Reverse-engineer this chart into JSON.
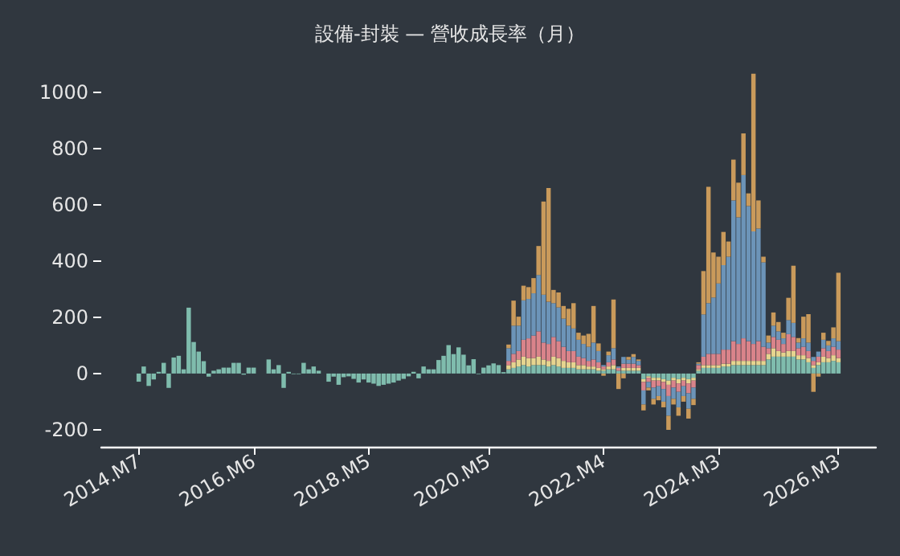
{
  "chart_data": {
    "type": "bar",
    "title": "設備-封裝 — 營收成長率（月）",
    "stacked": true,
    "categories": [
      null,
      null,
      null,
      null,
      null,
      null,
      null,
      "2014.M7",
      null,
      null,
      null,
      null,
      null,
      null,
      null,
      null,
      null,
      null,
      null,
      null,
      null,
      null,
      null,
      null,
      null,
      null,
      null,
      null,
      null,
      null,
      "2016.M6",
      null,
      null,
      null,
      null,
      null,
      null,
      null,
      null,
      null,
      null,
      null,
      null,
      null,
      null,
      null,
      null,
      null,
      null,
      null,
      null,
      null,
      null,
      "2018.M5",
      null,
      null,
      null,
      null,
      null,
      null,
      null,
      null,
      null,
      null,
      null,
      null,
      null,
      null,
      null,
      null,
      null,
      null,
      null,
      null,
      null,
      null,
      null,
      "2020.M5",
      null,
      null,
      null,
      null,
      null,
      null,
      null,
      null,
      null,
      null,
      null,
      null,
      null,
      null,
      null,
      null,
      null,
      null,
      null,
      null,
      null,
      null,
      "2022.M4",
      null,
      null,
      null,
      null,
      null,
      null,
      null,
      null,
      null,
      null,
      null,
      null,
      null,
      null,
      null,
      null,
      null,
      null,
      null,
      null,
      null,
      null,
      "2024.M3",
      null,
      null,
      null,
      null,
      null,
      null,
      null,
      null,
      null,
      null,
      null,
      null,
      null,
      null,
      null,
      null,
      null,
      null,
      null,
      null,
      null,
      null,
      null,
      "2026.M3",
      null,
      null,
      null,
      null,
      null,
      null,
      null
    ],
    "series": [
      {
        "color": "#7fbcad",
        "values": [
          null,
          null,
          null,
          null,
          null,
          null,
          null,
          -29,
          25,
          -44,
          -21,
          6,
          38,
          -51,
          57,
          63,
          15,
          234,
          112,
          78,
          44,
          -11,
          10,
          15,
          21,
          21,
          38,
          38,
          -4,
          21,
          21,
          0,
          null,
          50,
          15,
          30,
          -51,
          6,
          -2,
          -2,
          38,
          15,
          25,
          10,
          null,
          -29,
          -11,
          -40,
          -13,
          -10,
          -19,
          -32,
          -21,
          -32,
          -36,
          -44,
          -40,
          -36,
          -32,
          -25,
          -19,
          -10,
          6,
          -17,
          25,
          15,
          15,
          48,
          63,
          101,
          69,
          93,
          67,
          29,
          51,
          -2,
          21,
          29,
          36,
          30,
          5,
          15,
          20,
          25,
          30,
          25,
          30,
          30,
          30,
          25,
          30,
          25,
          20,
          20,
          20,
          15,
          15,
          15,
          15,
          10,
          10,
          15,
          15,
          10,
          10,
          10,
          10,
          10,
          -20,
          -10,
          -15,
          -15,
          -20,
          -25,
          -15,
          -20,
          -15,
          -20,
          -15,
          10,
          20,
          20,
          20,
          20,
          25,
          25,
          30,
          30,
          30,
          30,
          30,
          30,
          30,
          50,
          60,
          60,
          60,
          60,
          60,
          50,
          50,
          40,
          20,
          30,
          40,
          40,
          45,
          40,
          null,
          null,
          null,
          null,
          null,
          null,
          null
        ]
      },
      {
        "color": "#e6d48f",
        "values": [
          null,
          null,
          null,
          null,
          null,
          null,
          null,
          null,
          null,
          null,
          null,
          null,
          null,
          null,
          null,
          null,
          null,
          null,
          null,
          null,
          null,
          null,
          null,
          null,
          null,
          null,
          null,
          null,
          null,
          null,
          null,
          null,
          null,
          null,
          null,
          null,
          null,
          null,
          null,
          null,
          null,
          null,
          null,
          null,
          null,
          null,
          null,
          null,
          null,
          null,
          null,
          null,
          null,
          null,
          null,
          null,
          null,
          null,
          null,
          null,
          null,
          null,
          null,
          null,
          null,
          null,
          null,
          null,
          null,
          null,
          null,
          null,
          null,
          null,
          null,
          null,
          null,
          null,
          null,
          null,
          null,
          15,
          20,
          25,
          30,
          30,
          25,
          30,
          20,
          20,
          30,
          30,
          25,
          20,
          20,
          15,
          15,
          10,
          10,
          10,
          5,
          10,
          15,
          null,
          10,
          10,
          10,
          10,
          -10,
          -5,
          -10,
          -10,
          -10,
          -15,
          -10,
          -15,
          -10,
          -15,
          -10,
          5,
          10,
          10,
          10,
          10,
          10,
          10,
          15,
          15,
          15,
          15,
          15,
          15,
          15,
          20,
          30,
          20,
          15,
          20,
          20,
          15,
          15,
          15,
          10,
          10,
          20,
          15,
          20,
          15,
          null,
          null,
          null,
          null,
          null,
          null,
          null
        ]
      },
      {
        "color": "#d9838a",
        "values": [
          null,
          null,
          null,
          null,
          null,
          null,
          null,
          null,
          null,
          null,
          null,
          null,
          null,
          null,
          null,
          null,
          null,
          null,
          null,
          null,
          null,
          null,
          null,
          null,
          null,
          null,
          null,
          null,
          null,
          null,
          null,
          null,
          null,
          null,
          null,
          null,
          null,
          null,
          null,
          null,
          null,
          null,
          null,
          null,
          null,
          null,
          null,
          null,
          null,
          null,
          null,
          null,
          null,
          null,
          null,
          null,
          null,
          null,
          null,
          null,
          null,
          null,
          null,
          null,
          null,
          null,
          null,
          null,
          null,
          null,
          null,
          null,
          null,
          null,
          null,
          null,
          null,
          null,
          null,
          null,
          null,
          15,
          30,
          30,
          60,
          70,
          80,
          90,
          60,
          60,
          70,
          60,
          50,
          40,
          40,
          30,
          25,
          20,
          25,
          20,
          10,
          15,
          20,
          10,
          15,
          15,
          15,
          10,
          -30,
          -15,
          -25,
          -20,
          -25,
          -40,
          -25,
          -30,
          -20,
          -35,
          -25,
          15,
          30,
          40,
          40,
          40,
          50,
          50,
          70,
          60,
          80,
          70,
          60,
          70,
          50,
          20,
          40,
          40,
          30,
          60,
          50,
          25,
          30,
          25,
          15,
          20,
          30,
          25,
          30,
          30,
          null,
          null,
          null,
          null,
          null,
          null,
          null
        ]
      },
      {
        "color": "#6c94b8",
        "values": [
          null,
          null,
          null,
          null,
          null,
          null,
          null,
          null,
          null,
          null,
          null,
          null,
          null,
          null,
          null,
          null,
          null,
          null,
          null,
          null,
          null,
          null,
          null,
          null,
          null,
          null,
          null,
          null,
          null,
          null,
          null,
          null,
          null,
          null,
          null,
          null,
          null,
          null,
          null,
          null,
          null,
          null,
          null,
          null,
          null,
          null,
          null,
          null,
          null,
          null,
          null,
          null,
          null,
          null,
          null,
          null,
          null,
          null,
          null,
          null,
          null,
          null,
          null,
          null,
          null,
          null,
          null,
          null,
          null,
          null,
          null,
          null,
          null,
          null,
          null,
          null,
          null,
          null,
          null,
          null,
          null,
          45,
          100,
          90,
          140,
          140,
          150,
          200,
          170,
          150,
          120,
          120,
          100,
          90,
          80,
          60,
          50,
          50,
          60,
          40,
          5,
          25,
          40,
          5,
          24,
          14,
          24,
          15,
          -50,
          -20,
          -40,
          -35,
          -45,
          -70,
          -40,
          -55,
          -35,
          -55,
          -40,
          5,
          150,
          180,
          200,
          250,
          300,
          330,
          500,
          450,
          580,
          480,
          400,
          400,
          300,
          20,
          40,
          30,
          20,
          50,
          50,
          20,
          30,
          30,
          14,
          18,
          30,
          20,
          30,
          30,
          null,
          null,
          null,
          null,
          null,
          null,
          null
        ]
      },
      {
        "color": "#c99a5b",
        "values": [
          null,
          null,
          null,
          null,
          null,
          null,
          null,
          null,
          null,
          null,
          null,
          null,
          null,
          null,
          null,
          null,
          null,
          null,
          null,
          null,
          null,
          null,
          null,
          null,
          null,
          null,
          null,
          null,
          null,
          null,
          null,
          null,
          null,
          null,
          null,
          null,
          null,
          null,
          null,
          null,
          null,
          null,
          null,
          null,
          null,
          null,
          null,
          null,
          null,
          null,
          null,
          null,
          null,
          null,
          null,
          null,
          null,
          null,
          null,
          null,
          null,
          null,
          null,
          null,
          null,
          null,
          null,
          null,
          null,
          null,
          null,
          null,
          null,
          null,
          null,
          null,
          null,
          null,
          null,
          null,
          null,
          13,
          89,
          32,
          52,
          42,
          54,
          103,
          331,
          404,
          47,
          53,
          45,
          60,
          90,
          25,
          30,
          46,
          130,
          27,
          -8,
          13,
          173,
          -55,
          -17,
          10,
          10,
          5,
          -21,
          -10,
          -20,
          -15,
          -20,
          -50,
          -20,
          -30,
          -20,
          -35,
          -22,
          5,
          154,
          413,
          160,
          95,
          118,
          54,
          145,
          123,
          148,
          45,
          560,
          100,
          20,
          25,
          47,
          33,
          20,
          79,
          203,
          16,
          77,
          101,
          -65,
          -11,
          25,
          16,
          39,
          243,
          null,
          null,
          null,
          null,
          null,
          null,
          null
        ]
      }
    ],
    "ylim": [
      -260,
      1070
    ],
    "yticks": [
      -200,
      0,
      200,
      400,
      600,
      800,
      1000
    ]
  }
}
